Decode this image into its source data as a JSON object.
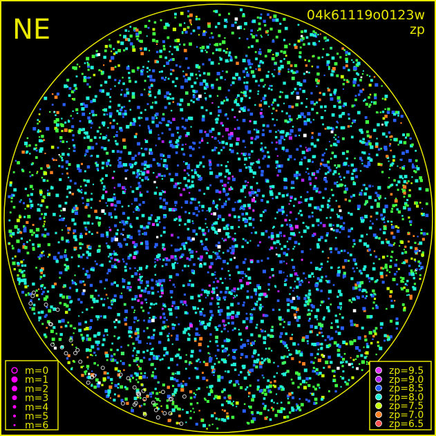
{
  "chart_data": {
    "type": "scatter",
    "title": "04k61119o0123w",
    "subtitle": "zp",
    "corner_label": "NE",
    "frame_color": "#e8e800",
    "horizon_circle": true,
    "background": "#000000",
    "size_legend": {
      "position": "bottom-left",
      "entries": [
        {
          "label": "m=0",
          "hollow": true
        },
        {
          "label": "m=1",
          "hollow": false
        },
        {
          "label": "m=2",
          "hollow": false
        },
        {
          "label": "m=3",
          "hollow": false
        },
        {
          "label": "m=4",
          "hollow": false
        },
        {
          "label": "m=5",
          "hollow": false
        },
        {
          "label": "m=6",
          "hollow": false
        }
      ],
      "color": "#ff00ff"
    },
    "color_legend": {
      "position": "bottom-right",
      "entries": [
        {
          "label": "zp=9.5",
          "zp": 9.5,
          "color": "#e030ff"
        },
        {
          "label": "zp=9.0",
          "zp": 9.0,
          "color": "#b020f0"
        },
        {
          "label": "zp=8.5",
          "zp": 8.5,
          "color": "#2860ff"
        },
        {
          "label": "zp=8.0",
          "zp": 8.0,
          "color": "#20f0d8"
        },
        {
          "label": "zp=7.5",
          "zp": 7.5,
          "color": "#c8ff00"
        },
        {
          "label": "zp=7.0",
          "zp": 7.0,
          "color": "#ff8020"
        },
        {
          "label": "zp=6.5",
          "zp": 6.5,
          "color": "#ff5050"
        }
      ]
    }
  }
}
